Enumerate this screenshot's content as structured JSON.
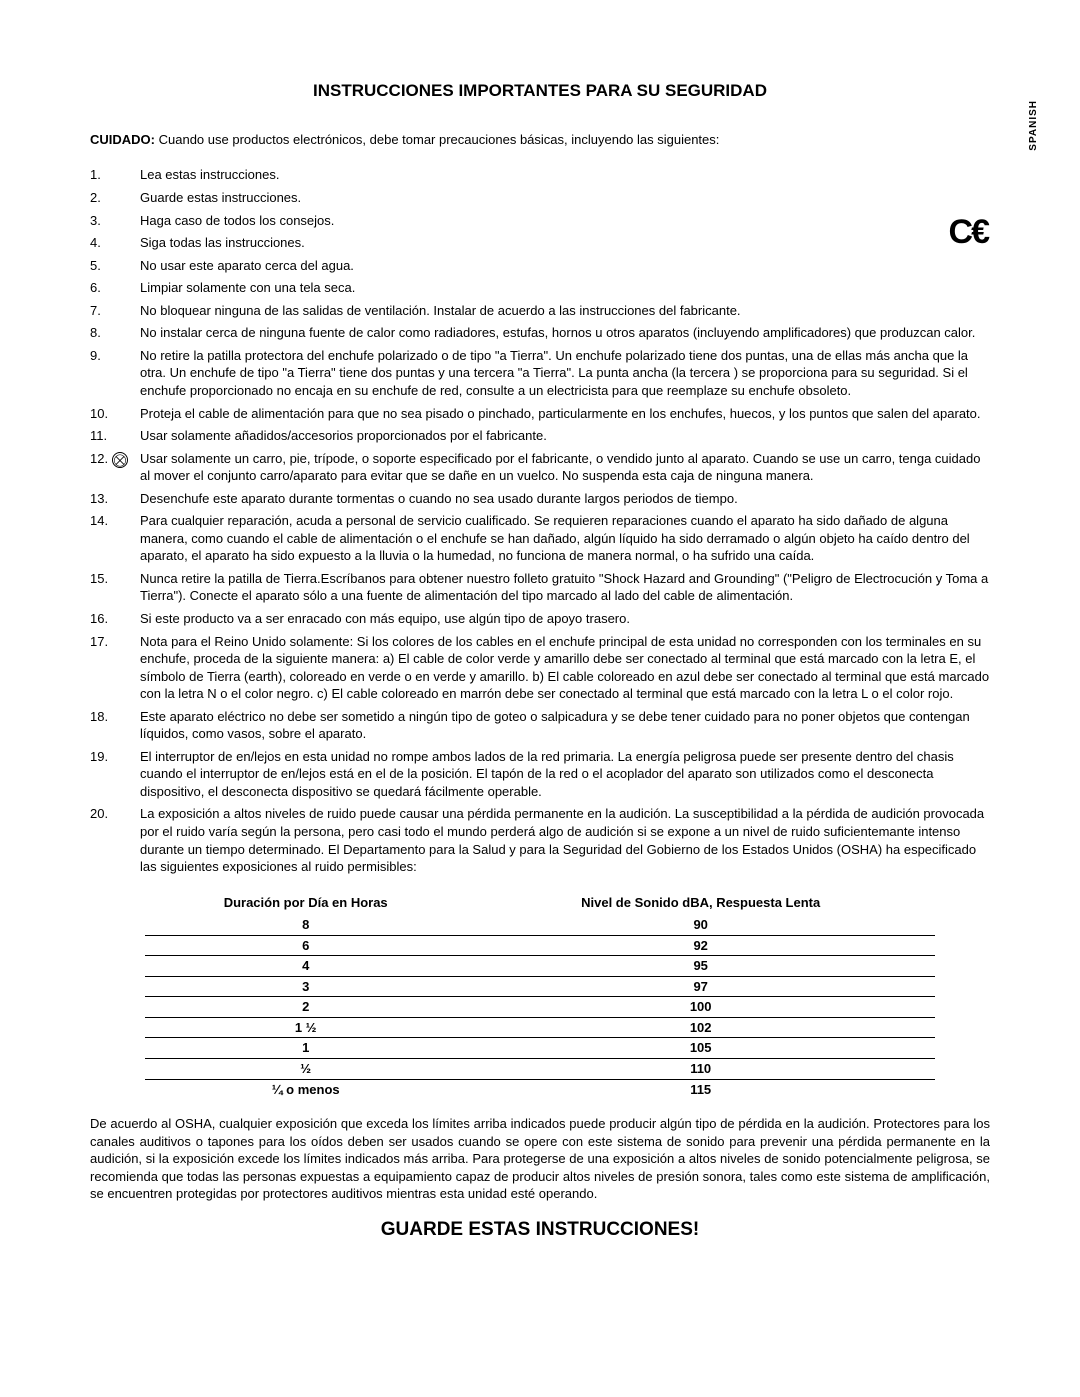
{
  "lang_label": "SPANISH",
  "ce_mark": "C€",
  "title": "INSTRUCCIONES IMPORTANTES PARA SU SEGURIDAD",
  "cuidado_label": "CUIDADO:",
  "cuidado_text": " Cuando use productos electrónicos, debe tomar precauciones básicas, incluyendo las siguientes:",
  "items": [
    {
      "n": "1.",
      "t": "Lea estas instrucciones."
    },
    {
      "n": "2.",
      "t": "Guarde estas instrucciones."
    },
    {
      "n": "3.",
      "t": "Haga caso de todos los consejos."
    },
    {
      "n": "4.",
      "t": "Siga todas las instrucciones."
    },
    {
      "n": "5.",
      "t": "No usar este aparato cerca del agua."
    },
    {
      "n": "6.",
      "t": "Limpiar solamente con una tela seca."
    },
    {
      "n": "7.",
      "t": "No bloquear ninguna de las salidas de ventilación. Instalar de acuerdo a las instrucciones del fabricante."
    },
    {
      "n": "8.",
      "t": "No instalar cerca de ninguna fuente de calor como radiadores, estufas, hornos u otros aparatos (incluyendo amplificadores) que produzcan calor."
    },
    {
      "n": "9.",
      "t": "No retire la patilla protectora del enchufe polarizado o de tipo \"a Tierra\". Un enchufe polarizado tiene dos puntas, una de ellas más ancha que la otra. Un enchufe de tipo \"a Tierra\" tiene dos puntas y una tercera \"a Tierra\". La punta ancha (la tercera ) se proporciona para su seguridad. Si el enchufe proporcionado no encaja en su enchufe de red, consulte a un electricista para que reemplaze su enchufe obsoleto."
    },
    {
      "n": "10.",
      "t": "Proteja el cable de alimentación para que no sea pisado o pinchado, particularmente en los enchufes, huecos, y los puntos que salen del aparato."
    },
    {
      "n": "11.",
      "t": "Usar solamente añadidos/accesorios proporcionados por el fabricante."
    },
    {
      "n": "12.",
      "t": "Usar solamente un carro, pie, trípode, o soporte especificado por el fabricante, o vendido junto al aparato. Cuando se use un carro, tenga cuidado al mover el conjunto carro/aparato para evitar que se dañe en un vuelco. No suspenda esta caja de ninguna manera.",
      "icon": true
    },
    {
      "n": "13.",
      "t": "Desenchufe este aparato durante tormentas o cuando no sea usado durante largos periodos de tiempo."
    },
    {
      "n": "14.",
      "t": "Para cualquier reparación, acuda a personal de servicio cualificado. Se requieren reparaciones cuando el aparato ha sido dañado de alguna manera, como cuando el cable de alimentación o el enchufe se han dañado, algún líquido ha sido derramado o algún objeto ha caído dentro del aparato, el aparato ha sido expuesto a la lluvia o la humedad, no funciona de manera normal, o ha sufrido una caída."
    },
    {
      "n": "15.",
      "t": "Nunca retire la patilla de Tierra.Escríbanos para obtener nuestro folleto gratuito \"Shock Hazard and Grounding\" (\"Peligro de Electrocución y Toma a Tierra\"). Conecte el aparato sólo a una fuente de alimentación del tipo marcado al lado del cable de alimentación."
    },
    {
      "n": "16.",
      "t": "Si este producto va a ser enracado con más equipo, use algún tipo de apoyo trasero."
    },
    {
      "n": "17.",
      "t": "Nota para el Reino Unido solamente: Si los colores de los cables en el enchufe principal de esta unidad no corresponden con los terminales en su enchufe, proceda de la siguiente manera: a) El cable de color verde y amarillo debe ser conectado al terminal que está marcado con la letra E, el símbolo de Tierra (earth), coloreado en verde o en verde y amarillo. b) El cable coloreado en azul debe ser conectado al terminal que está marcado con la letra N o el color negro. c) El cable coloreado en marrón debe ser conectado al terminal que está marcado con la letra L o el color rojo."
    },
    {
      "n": "18.",
      "t": "Este aparato eléctrico no debe ser sometido a ningún tipo de goteo o salpicadura y se debe tener cuidado para no poner objetos que contengan líquidos, como vasos, sobre el aparato."
    },
    {
      "n": "19.",
      "t": "El interruptor de en/lejos en esta unidad no rompe ambos lados de la red primaria. La energía peligrosa puede ser presente dentro del chasis cuando el interruptor de en/lejos está en el de la posición. El tapón de la red o el acoplador del aparato son utilizados como el desconecta dispositivo, el desconecta dispositivo se quedará fácilmente operable."
    },
    {
      "n": "20.",
      "t": "La exposición a altos niveles de ruido puede causar una pérdida permanente en la audición. La susceptibilidad a la pérdida de audición provocada por el ruido varía según la persona, pero casi todo el mundo perderá algo de audición si se expone a un nivel de ruido suficientemante intenso durante un tiempo determinado. El Departamento para la Salud y para la Seguridad del Gobierno de los Estados Unidos (OSHA) ha especificado las siguientes exposiciones al ruido permisibles:"
    }
  ],
  "table": {
    "head_left": "Duración por Día en Horas",
    "head_right": "Nivel de Sonido dBA, Respuesta Lenta",
    "rows": [
      [
        "8",
        "90"
      ],
      [
        "6",
        "92"
      ],
      [
        "4",
        "95"
      ],
      [
        "3",
        "97"
      ],
      [
        "2",
        "100"
      ],
      [
        "1 ½",
        "102"
      ],
      [
        "1",
        "105"
      ],
      [
        "½",
        "110"
      ],
      [
        "¼ o menos",
        "115"
      ]
    ]
  },
  "osha_footer": "De acuerdo al OSHA, cualquier exposición que exceda los límites arriba indicados puede producir algún tipo de pérdida en la audición. Protectores para los canales auditivos o tapones para los oídos deben ser usados cuando se opere con este sistema de sonido para prevenir una pérdida permanente en la audición, si la exposición excede los límites indicados más arriba. Para  protegerse de una exposición a altos niveles de sonido potencialmente peligrosa, se recomienda que todas las personas  expuestas a equipamiento capaz de producir altos niveles de presión sonora, tales como este sistema de amplificación, se encuentren protegidas por protectores auditivos mientras esta unidad esté operando.",
  "footer_title": "GUARDE ESTAS INSTRUCCIONES!"
}
